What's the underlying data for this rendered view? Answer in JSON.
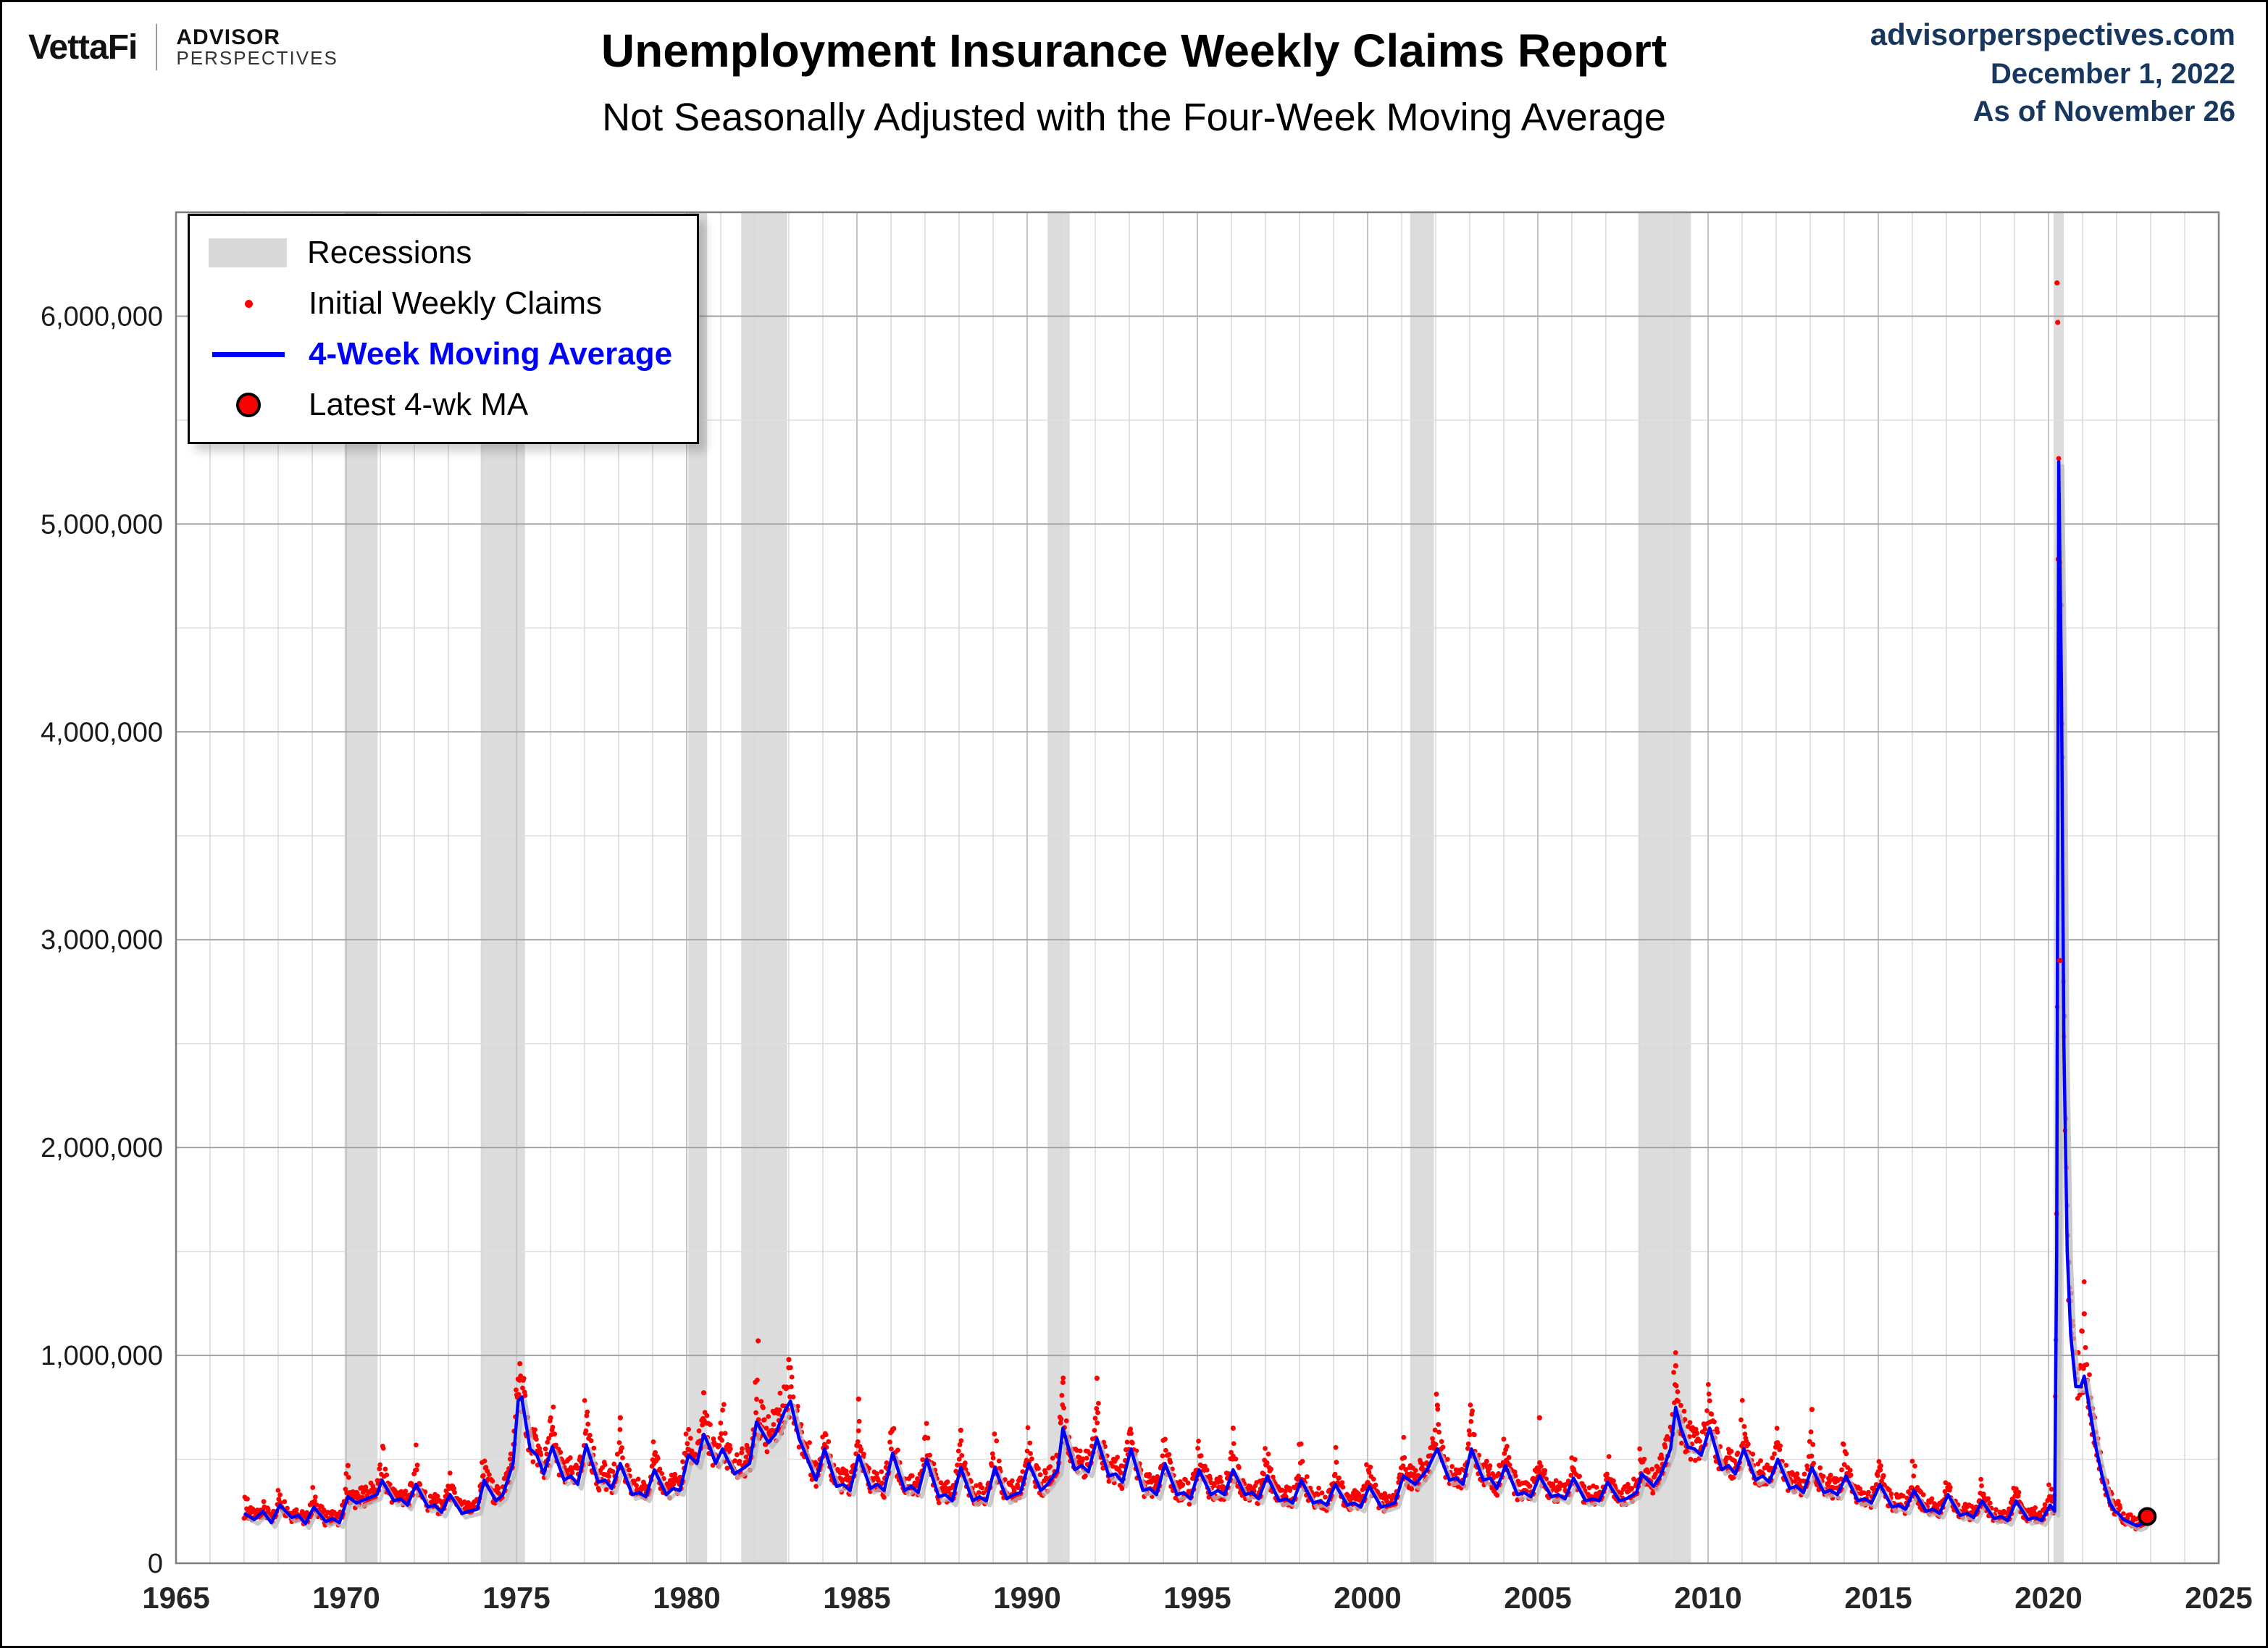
{
  "header": {
    "brand": {
      "vettafi": "VettaFi",
      "advisor_line1": "ADVISOR",
      "advisor_line2": "PERSPECTIVES"
    },
    "title": "Unemployment Insurance Weekly Claims Report",
    "subtitle": "Not Seasonally Adjusted with the Four-Week Moving Average",
    "source": {
      "site": "advisorperspectives.com",
      "date": "December 1, 2022",
      "asof": "As of November 26"
    }
  },
  "legend": {
    "recessions": "Recessions",
    "initial": "Initial Weekly Claims",
    "ma": "4-Week Moving Average",
    "latest": "Latest 4-wk MA"
  },
  "colors": {
    "initial": "#ff0000",
    "ma": "#0000ff",
    "ma_shadow": "#b8b8b8",
    "recession": "#dcdcdc",
    "grid_major": "#a3a3a3",
    "grid_minor": "#e0e0e0",
    "grid_year": "#d8d8d8",
    "grid_5year": "#c4c4c4",
    "border": "#7f7f7f",
    "accent_navy": "#17375e",
    "latest_fill": "#ff0000",
    "latest_stroke": "#000000"
  },
  "chart_data": {
    "type": "line+scatter",
    "title": "Unemployment Insurance Weekly Claims Report",
    "subtitle": "Not Seasonally Adjusted with the Four-Week Moving Average",
    "x_range": [
      1965,
      2025
    ],
    "y_range": [
      0,
      6500000
    ],
    "x_ticks": [
      1965,
      1970,
      1975,
      1980,
      1985,
      1990,
      1995,
      2000,
      2005,
      2010,
      2015,
      2020,
      2025
    ],
    "y_tick_step": 1000000,
    "y_minor_step": 500000,
    "y_max_label": 6000000,
    "grid": true,
    "legend_position": "top-left",
    "recessions": [
      [
        1969.95,
        1970.92
      ],
      [
        1973.95,
        1975.25
      ],
      [
        1980.05,
        1980.6
      ],
      [
        1981.6,
        1982.95
      ],
      [
        1990.6,
        1991.25
      ],
      [
        2001.25,
        2001.95
      ],
      [
        2007.95,
        2009.5
      ],
      [
        2020.15,
        2020.45
      ]
    ],
    "series_units": "thousands of claims",
    "ma_points_kilo": [
      [
        1967.0,
        240
      ],
      [
        1967.3,
        210
      ],
      [
        1967.55,
        250
      ],
      [
        1967.8,
        195
      ],
      [
        1968.05,
        280
      ],
      [
        1968.4,
        220
      ],
      [
        1968.6,
        230
      ],
      [
        1968.8,
        190
      ],
      [
        1969.05,
        270
      ],
      [
        1969.4,
        200
      ],
      [
        1969.6,
        215
      ],
      [
        1969.8,
        195
      ],
      [
        1970.05,
        320
      ],
      [
        1970.3,
        290
      ],
      [
        1970.6,
        310
      ],
      [
        1970.9,
        330
      ],
      [
        1971.05,
        400
      ],
      [
        1971.4,
        300
      ],
      [
        1971.6,
        310
      ],
      [
        1971.8,
        280
      ],
      [
        1972.05,
        380
      ],
      [
        1972.4,
        270
      ],
      [
        1972.6,
        280
      ],
      [
        1972.8,
        245
      ],
      [
        1973.05,
        330
      ],
      [
        1973.4,
        240
      ],
      [
        1973.6,
        250
      ],
      [
        1973.85,
        260
      ],
      [
        1974.05,
        400
      ],
      [
        1974.4,
        300
      ],
      [
        1974.6,
        330
      ],
      [
        1974.9,
        480
      ],
      [
        1975.05,
        780
      ],
      [
        1975.15,
        800
      ],
      [
        1975.4,
        550
      ],
      [
        1975.6,
        520
      ],
      [
        1975.8,
        430
      ],
      [
        1976.05,
        560
      ],
      [
        1976.4,
        400
      ],
      [
        1976.6,
        420
      ],
      [
        1976.8,
        380
      ],
      [
        1977.05,
        570
      ],
      [
        1977.4,
        390
      ],
      [
        1977.6,
        400
      ],
      [
        1977.8,
        360
      ],
      [
        1978.05,
        480
      ],
      [
        1978.4,
        330
      ],
      [
        1978.6,
        340
      ],
      [
        1978.8,
        320
      ],
      [
        1979.05,
        450
      ],
      [
        1979.4,
        330
      ],
      [
        1979.6,
        360
      ],
      [
        1979.8,
        350
      ],
      [
        1980.05,
        520
      ],
      [
        1980.3,
        480
      ],
      [
        1980.5,
        620
      ],
      [
        1980.7,
        550
      ],
      [
        1980.85,
        480
      ],
      [
        1981.05,
        550
      ],
      [
        1981.4,
        430
      ],
      [
        1981.6,
        450
      ],
      [
        1981.85,
        480
      ],
      [
        1982.05,
        680
      ],
      [
        1982.4,
        580
      ],
      [
        1982.6,
        620
      ],
      [
        1982.9,
        740
      ],
      [
        1983.05,
        780
      ],
      [
        1983.3,
        600
      ],
      [
        1983.6,
        480
      ],
      [
        1983.8,
        400
      ],
      [
        1984.05,
        550
      ],
      [
        1984.4,
        370
      ],
      [
        1984.6,
        380
      ],
      [
        1984.8,
        350
      ],
      [
        1985.05,
        520
      ],
      [
        1985.4,
        360
      ],
      [
        1985.6,
        380
      ],
      [
        1985.8,
        350
      ],
      [
        1986.05,
        530
      ],
      [
        1986.4,
        350
      ],
      [
        1986.6,
        370
      ],
      [
        1986.8,
        340
      ],
      [
        1987.05,
        500
      ],
      [
        1987.4,
        320
      ],
      [
        1987.6,
        330
      ],
      [
        1987.8,
        300
      ],
      [
        1988.05,
        460
      ],
      [
        1988.4,
        300
      ],
      [
        1988.6,
        320
      ],
      [
        1988.8,
        300
      ],
      [
        1989.05,
        460
      ],
      [
        1989.4,
        310
      ],
      [
        1989.6,
        330
      ],
      [
        1989.8,
        340
      ],
      [
        1990.05,
        480
      ],
      [
        1990.4,
        350
      ],
      [
        1990.6,
        380
      ],
      [
        1990.9,
        450
      ],
      [
        1991.05,
        650
      ],
      [
        1991.4,
        450
      ],
      [
        1991.6,
        470
      ],
      [
        1991.8,
        440
      ],
      [
        1992.05,
        600
      ],
      [
        1992.4,
        420
      ],
      [
        1992.6,
        430
      ],
      [
        1992.8,
        390
      ],
      [
        1993.05,
        550
      ],
      [
        1993.4,
        350
      ],
      [
        1993.6,
        360
      ],
      [
        1993.8,
        330
      ],
      [
        1994.05,
        480
      ],
      [
        1994.4,
        330
      ],
      [
        1994.6,
        340
      ],
      [
        1994.8,
        310
      ],
      [
        1995.05,
        450
      ],
      [
        1995.4,
        330
      ],
      [
        1995.6,
        350
      ],
      [
        1995.8,
        330
      ],
      [
        1996.05,
        450
      ],
      [
        1996.4,
        330
      ],
      [
        1996.6,
        340
      ],
      [
        1996.8,
        310
      ],
      [
        1997.05,
        420
      ],
      [
        1997.4,
        300
      ],
      [
        1997.6,
        310
      ],
      [
        1997.8,
        290
      ],
      [
        1998.05,
        400
      ],
      [
        1998.4,
        290
      ],
      [
        1998.6,
        300
      ],
      [
        1998.8,
        280
      ],
      [
        1999.05,
        380
      ],
      [
        1999.4,
        280
      ],
      [
        1999.6,
        290
      ],
      [
        1999.8,
        270
      ],
      [
        2000.05,
        370
      ],
      [
        2000.4,
        270
      ],
      [
        2000.6,
        280
      ],
      [
        2000.8,
        290
      ],
      [
        2001.05,
        420
      ],
      [
        2001.4,
        380
      ],
      [
        2001.6,
        420
      ],
      [
        2001.75,
        450
      ],
      [
        2001.95,
        520
      ],
      [
        2002.05,
        550
      ],
      [
        2002.4,
        400
      ],
      [
        2002.6,
        410
      ],
      [
        2002.8,
        380
      ],
      [
        2003.05,
        550
      ],
      [
        2003.4,
        400
      ],
      [
        2003.6,
        410
      ],
      [
        2003.8,
        360
      ],
      [
        2004.05,
        470
      ],
      [
        2004.4,
        330
      ],
      [
        2004.6,
        340
      ],
      [
        2004.8,
        320
      ],
      [
        2005.05,
        420
      ],
      [
        2005.4,
        320
      ],
      [
        2005.6,
        330
      ],
      [
        2005.8,
        310
      ],
      [
        2006.05,
        410
      ],
      [
        2006.4,
        300
      ],
      [
        2006.6,
        310
      ],
      [
        2006.8,
        300
      ],
      [
        2007.05,
        390
      ],
      [
        2007.4,
        300
      ],
      [
        2007.6,
        310
      ],
      [
        2007.9,
        340
      ],
      [
        2008.05,
        430
      ],
      [
        2008.4,
        370
      ],
      [
        2008.6,
        420
      ],
      [
        2008.9,
        550
      ],
      [
        2009.05,
        750
      ],
      [
        2009.2,
        650
      ],
      [
        2009.4,
        560
      ],
      [
        2009.6,
        550
      ],
      [
        2009.8,
        520
      ],
      [
        2010.05,
        650
      ],
      [
        2010.4,
        450
      ],
      [
        2010.6,
        470
      ],
      [
        2010.8,
        430
      ],
      [
        2011.05,
        550
      ],
      [
        2011.4,
        400
      ],
      [
        2011.6,
        420
      ],
      [
        2011.8,
        390
      ],
      [
        2012.05,
        500
      ],
      [
        2012.4,
        360
      ],
      [
        2012.6,
        370
      ],
      [
        2012.8,
        340
      ],
      [
        2013.05,
        460
      ],
      [
        2013.4,
        340
      ],
      [
        2013.6,
        350
      ],
      [
        2013.8,
        330
      ],
      [
        2014.05,
        420
      ],
      [
        2014.4,
        300
      ],
      [
        2014.6,
        310
      ],
      [
        2014.8,
        290
      ],
      [
        2015.05,
        380
      ],
      [
        2015.4,
        270
      ],
      [
        2015.6,
        280
      ],
      [
        2015.8,
        260
      ],
      [
        2016.05,
        350
      ],
      [
        2016.4,
        250
      ],
      [
        2016.6,
        260
      ],
      [
        2016.8,
        240
      ],
      [
        2017.05,
        330
      ],
      [
        2017.4,
        230
      ],
      [
        2017.6,
        240
      ],
      [
        2017.8,
        220
      ],
      [
        2018.05,
        300
      ],
      [
        2018.4,
        215
      ],
      [
        2018.6,
        225
      ],
      [
        2018.8,
        205
      ],
      [
        2019.05,
        300
      ],
      [
        2019.4,
        210
      ],
      [
        2019.6,
        220
      ],
      [
        2019.8,
        205
      ],
      [
        2020.05,
        280
      ],
      [
        2020.18,
        250
      ],
      [
        2020.24,
        1500
      ],
      [
        2020.3,
        5300
      ],
      [
        2020.38,
        4200
      ],
      [
        2020.45,
        2500
      ],
      [
        2020.55,
        1500
      ],
      [
        2020.65,
        1100
      ],
      [
        2020.8,
        850
      ],
      [
        2020.95,
        850
      ],
      [
        2021.05,
        900
      ],
      [
        2021.2,
        750
      ],
      [
        2021.4,
        550
      ],
      [
        2021.6,
        400
      ],
      [
        2021.8,
        290
      ],
      [
        2021.95,
        250
      ],
      [
        2022.05,
        240
      ],
      [
        2022.2,
        210
      ],
      [
        2022.4,
        195
      ],
      [
        2022.6,
        180
      ],
      [
        2022.75,
        190
      ],
      [
        2022.9,
        225
      ]
    ],
    "outliers_kilo": [
      [
        1970.05,
        470
      ],
      [
        1975.1,
        960
      ],
      [
        1978.05,
        700
      ],
      [
        1980.5,
        820
      ],
      [
        1982.1,
        1070
      ],
      [
        1983.0,
        980
      ],
      [
        1985.05,
        790
      ],
      [
        1988.05,
        640
      ],
      [
        1991.05,
        870
      ],
      [
        1992.05,
        890
      ],
      [
        1996.05,
        650
      ],
      [
        2002.05,
        760
      ],
      [
        2005.05,
        700
      ],
      [
        2009.05,
        950
      ],
      [
        2013.05,
        740
      ],
      [
        2020.25,
        6160
      ],
      [
        2020.27,
        5970
      ],
      [
        2020.33,
        2900
      ],
      [
        2021.05,
        1200
      ]
    ],
    "latest_kilo": [
      2022.9,
      225
    ],
    "scatter": {
      "start": 1967.0,
      "end": 2022.9,
      "step": 0.0192,
      "base_offset": 0.9,
      "base_spread": 0.32,
      "winter_boost": 0.32,
      "min_k": 150,
      "max_k": 6400
    }
  }
}
